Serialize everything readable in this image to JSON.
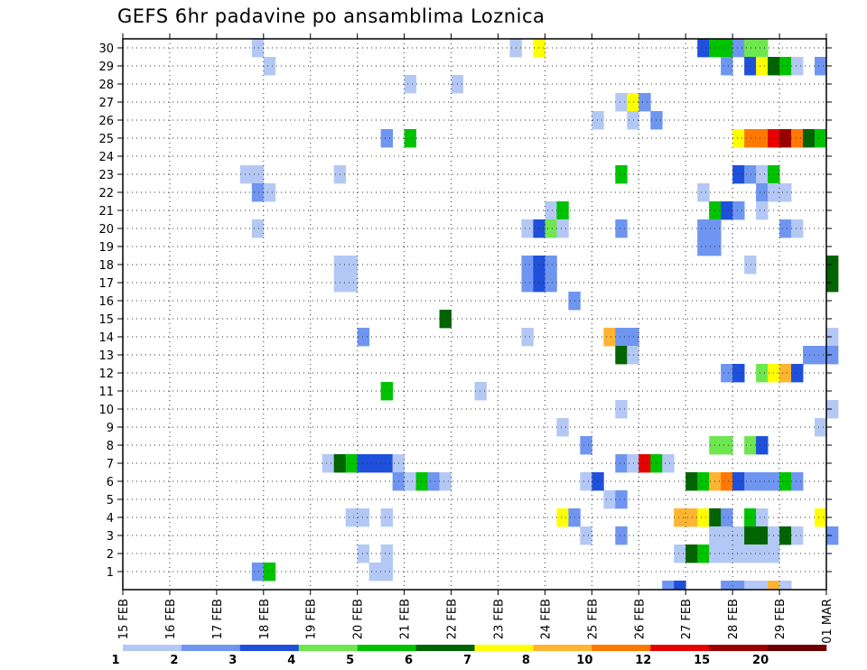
{
  "chart_data": {
    "type": "heatmap",
    "title": "GEFS 6hr padavine po ansamblima Loznica",
    "x_tick_labels": [
      "15 FEB",
      "16 FEB",
      "17 FEB",
      "18 FEB",
      "19 FEB",
      "20 FEB",
      "21 FEB",
      "22 FEB",
      "23 FEB",
      "24 FEB",
      "25 FEB",
      "26 FEB",
      "27 FEB",
      "28 FEB",
      "29 FEB",
      "01 MAR"
    ],
    "y_tick_labels": [
      "1",
      "2",
      "3",
      "4",
      "5",
      "6",
      "7",
      "8",
      "9",
      "10",
      "11",
      "12",
      "13",
      "14",
      "15",
      "16",
      "17",
      "18",
      "19",
      "20",
      "21",
      "22",
      "23",
      "24",
      "25",
      "26",
      "27",
      "28",
      "29",
      "30"
    ],
    "x_range_steps": [
      0,
      60
    ],
    "y_range_members": [
      0,
      30
    ],
    "time_step_hours": 6,
    "grid": "dotted",
    "colorbar": {
      "levels": [
        "1",
        "2",
        "3",
        "4",
        "5",
        "6",
        "7",
        "8",
        "10",
        "12",
        "15",
        "20"
      ],
      "colors": [
        "#b4c8f5",
        "#6e96f0",
        "#1e50dc",
        "#6ee650",
        "#00c300",
        "#006400",
        "#ffff00",
        "#ffb432",
        "#ff7800",
        "#e60000",
        "#9b0000",
        "#6e0000"
      ]
    },
    "cells": [
      [
        11,
        30,
        1
      ],
      [
        33,
        30,
        1
      ],
      [
        35,
        30,
        7
      ],
      [
        49,
        30,
        3
      ],
      [
        50,
        30,
        5
      ],
      [
        51,
        30,
        5
      ],
      [
        52,
        30,
        2
      ],
      [
        53,
        30,
        4
      ],
      [
        54,
        30,
        4
      ],
      [
        12,
        29,
        1
      ],
      [
        51,
        29,
        2
      ],
      [
        53,
        29,
        3
      ],
      [
        54,
        29,
        7
      ],
      [
        55,
        29,
        6
      ],
      [
        56,
        29,
        5
      ],
      [
        57,
        29,
        1
      ],
      [
        59,
        29,
        2
      ],
      [
        24,
        28,
        1
      ],
      [
        28,
        28,
        1
      ],
      [
        42,
        27,
        1
      ],
      [
        43,
        27,
        7
      ],
      [
        44,
        27,
        2
      ],
      [
        40,
        26,
        1
      ],
      [
        43,
        26,
        1
      ],
      [
        45,
        26,
        2
      ],
      [
        22,
        25,
        2
      ],
      [
        24,
        25,
        5
      ],
      [
        52,
        25,
        7
      ],
      [
        53,
        25,
        9
      ],
      [
        54,
        25,
        9
      ],
      [
        55,
        25,
        10
      ],
      [
        56,
        25,
        11
      ],
      [
        57,
        25,
        9
      ],
      [
        58,
        25,
        6
      ],
      [
        59,
        25,
        5
      ],
      [
        10,
        23,
        1
      ],
      [
        11,
        23,
        1
      ],
      [
        18,
        23,
        1
      ],
      [
        42,
        23,
        5
      ],
      [
        52,
        23,
        3
      ],
      [
        53,
        23,
        2
      ],
      [
        54,
        23,
        1
      ],
      [
        55,
        23,
        5
      ],
      [
        11,
        22,
        2
      ],
      [
        12,
        22,
        1
      ],
      [
        49,
        22,
        1
      ],
      [
        54,
        22,
        2
      ],
      [
        55,
        22,
        1
      ],
      [
        56,
        22,
        1
      ],
      [
        36,
        21,
        1
      ],
      [
        37,
        21,
        5
      ],
      [
        50,
        21,
        5
      ],
      [
        51,
        21,
        3
      ],
      [
        52,
        21,
        2
      ],
      [
        54,
        21,
        1
      ],
      [
        11,
        20,
        1
      ],
      [
        34,
        20,
        1
      ],
      [
        35,
        20,
        3
      ],
      [
        36,
        20,
        4
      ],
      [
        37,
        20,
        1
      ],
      [
        42,
        20,
        2
      ],
      [
        49,
        20,
        2
      ],
      [
        50,
        20,
        2
      ],
      [
        56,
        20,
        2
      ],
      [
        57,
        20,
        1
      ],
      [
        49,
        19,
        2
      ],
      [
        50,
        19,
        2
      ],
      [
        53,
        18,
        1
      ],
      [
        18,
        17,
        1
      ],
      [
        19,
        17,
        1
      ],
      [
        34,
        17,
        2
      ],
      [
        35,
        17,
        3
      ],
      [
        36,
        17,
        2
      ],
      [
        60,
        17,
        6
      ],
      [
        18,
        18,
        1
      ],
      [
        19,
        18,
        1
      ],
      [
        34,
        18,
        2
      ],
      [
        35,
        18,
        3
      ],
      [
        36,
        18,
        2
      ],
      [
        60,
        18,
        6
      ],
      [
        38,
        16,
        2
      ],
      [
        27,
        15,
        6
      ],
      [
        20,
        14,
        2
      ],
      [
        34,
        14,
        1
      ],
      [
        41,
        14,
        8
      ],
      [
        42,
        14,
        2
      ],
      [
        43,
        14,
        2
      ],
      [
        60,
        14,
        1
      ],
      [
        42,
        13,
        6
      ],
      [
        43,
        13,
        1
      ],
      [
        58,
        13,
        2
      ],
      [
        59,
        13,
        2
      ],
      [
        60,
        13,
        2
      ],
      [
        51,
        12,
        2
      ],
      [
        52,
        12,
        3
      ],
      [
        54,
        12,
        4
      ],
      [
        55,
        12,
        7
      ],
      [
        56,
        12,
        8
      ],
      [
        57,
        12,
        3
      ],
      [
        22,
        11,
        5
      ],
      [
        30,
        11,
        1
      ],
      [
        42,
        10,
        1
      ],
      [
        60,
        10,
        1
      ],
      [
        37,
        9,
        1
      ],
      [
        59,
        9,
        1
      ],
      [
        39,
        8,
        2
      ],
      [
        50,
        8,
        4
      ],
      [
        51,
        8,
        4
      ],
      [
        53,
        8,
        4
      ],
      [
        54,
        8,
        3
      ],
      [
        17,
        7,
        1
      ],
      [
        18,
        7,
        6
      ],
      [
        19,
        7,
        5
      ],
      [
        20,
        7,
        3
      ],
      [
        21,
        7,
        3
      ],
      [
        22,
        7,
        3
      ],
      [
        23,
        7,
        1
      ],
      [
        42,
        7,
        2
      ],
      [
        43,
        7,
        1
      ],
      [
        44,
        7,
        10
      ],
      [
        45,
        7,
        5
      ],
      [
        46,
        7,
        1
      ],
      [
        23,
        6,
        2
      ],
      [
        24,
        6,
        1
      ],
      [
        25,
        6,
        5
      ],
      [
        26,
        6,
        2
      ],
      [
        27,
        6,
        1
      ],
      [
        39,
        6,
        1
      ],
      [
        40,
        6,
        3
      ],
      [
        48,
        6,
        6
      ],
      [
        49,
        6,
        5
      ],
      [
        50,
        6,
        8
      ],
      [
        51,
        6,
        9
      ],
      [
        52,
        6,
        3
      ],
      [
        53,
        6,
        2
      ],
      [
        54,
        6,
        2
      ],
      [
        55,
        6,
        2
      ],
      [
        56,
        6,
        5
      ],
      [
        57,
        6,
        2
      ],
      [
        41,
        5,
        1
      ],
      [
        42,
        5,
        2
      ],
      [
        19,
        4,
        1
      ],
      [
        20,
        4,
        1
      ],
      [
        22,
        4,
        1
      ],
      [
        37,
        4,
        7
      ],
      [
        38,
        4,
        2
      ],
      [
        47,
        4,
        8
      ],
      [
        48,
        4,
        8
      ],
      [
        49,
        4,
        7
      ],
      [
        50,
        4,
        6
      ],
      [
        51,
        4,
        2
      ],
      [
        53,
        4,
        5
      ],
      [
        54,
        4,
        1
      ],
      [
        59,
        4,
        7
      ],
      [
        39,
        3,
        1
      ],
      [
        42,
        3,
        2
      ],
      [
        50,
        3,
        1
      ],
      [
        51,
        3,
        1
      ],
      [
        52,
        3,
        1
      ],
      [
        53,
        3,
        6
      ],
      [
        54,
        3,
        6
      ],
      [
        55,
        3,
        1
      ],
      [
        56,
        3,
        6
      ],
      [
        57,
        3,
        1
      ],
      [
        60,
        3,
        2
      ],
      [
        47,
        2,
        1
      ],
      [
        48,
        2,
        6
      ],
      [
        49,
        2,
        5
      ],
      [
        50,
        2,
        1
      ],
      [
        51,
        2,
        1
      ],
      [
        52,
        2,
        1
      ],
      [
        53,
        2,
        1
      ],
      [
        54,
        2,
        1
      ],
      [
        55,
        2,
        1
      ],
      [
        20,
        2,
        1
      ],
      [
        22,
        2,
        1
      ],
      [
        21,
        1,
        1
      ],
      [
        22,
        1,
        1
      ],
      [
        11,
        1,
        2
      ],
      [
        12,
        1,
        5
      ],
      [
        46,
        0,
        2
      ],
      [
        47,
        0,
        3
      ],
      [
        51,
        0,
        2
      ],
      [
        52,
        0,
        2
      ],
      [
        53,
        0,
        1
      ],
      [
        54,
        0,
        1
      ],
      [
        55,
        0,
        8
      ],
      [
        56,
        0,
        1
      ]
    ]
  }
}
